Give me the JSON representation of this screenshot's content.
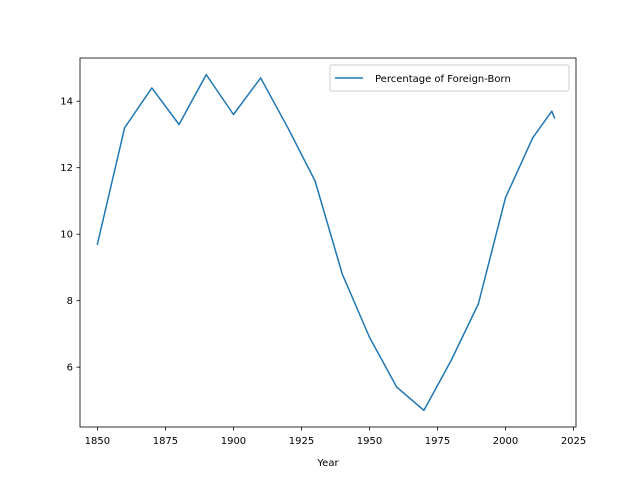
{
  "chart_data": {
    "type": "line",
    "title": "",
    "xlabel": "Year",
    "ylabel": "",
    "xlim": [
      1843.6,
      2025.9
    ],
    "ylim": [
      4.2,
      15.3
    ],
    "xticks": [
      1850,
      1875,
      1900,
      1925,
      1950,
      1975,
      2000,
      2025
    ],
    "yticks": [
      6,
      8,
      10,
      12,
      14
    ],
    "grid": false,
    "legend_position": "upper right",
    "series": [
      {
        "name": "Percentage of Foreign-Born",
        "color": "#1f77b4",
        "x": [
          1850,
          1860,
          1870,
          1880,
          1890,
          1900,
          1910,
          1920,
          1930,
          1940,
          1950,
          1960,
          1970,
          1980,
          1990,
          2000,
          2010,
          2017,
          2018
        ],
        "y": [
          9.7,
          13.2,
          14.4,
          13.3,
          14.8,
          13.6,
          14.7,
          13.2,
          11.6,
          8.8,
          6.9,
          5.4,
          4.7,
          6.2,
          7.9,
          11.1,
          12.9,
          13.7,
          13.5
        ]
      }
    ]
  }
}
